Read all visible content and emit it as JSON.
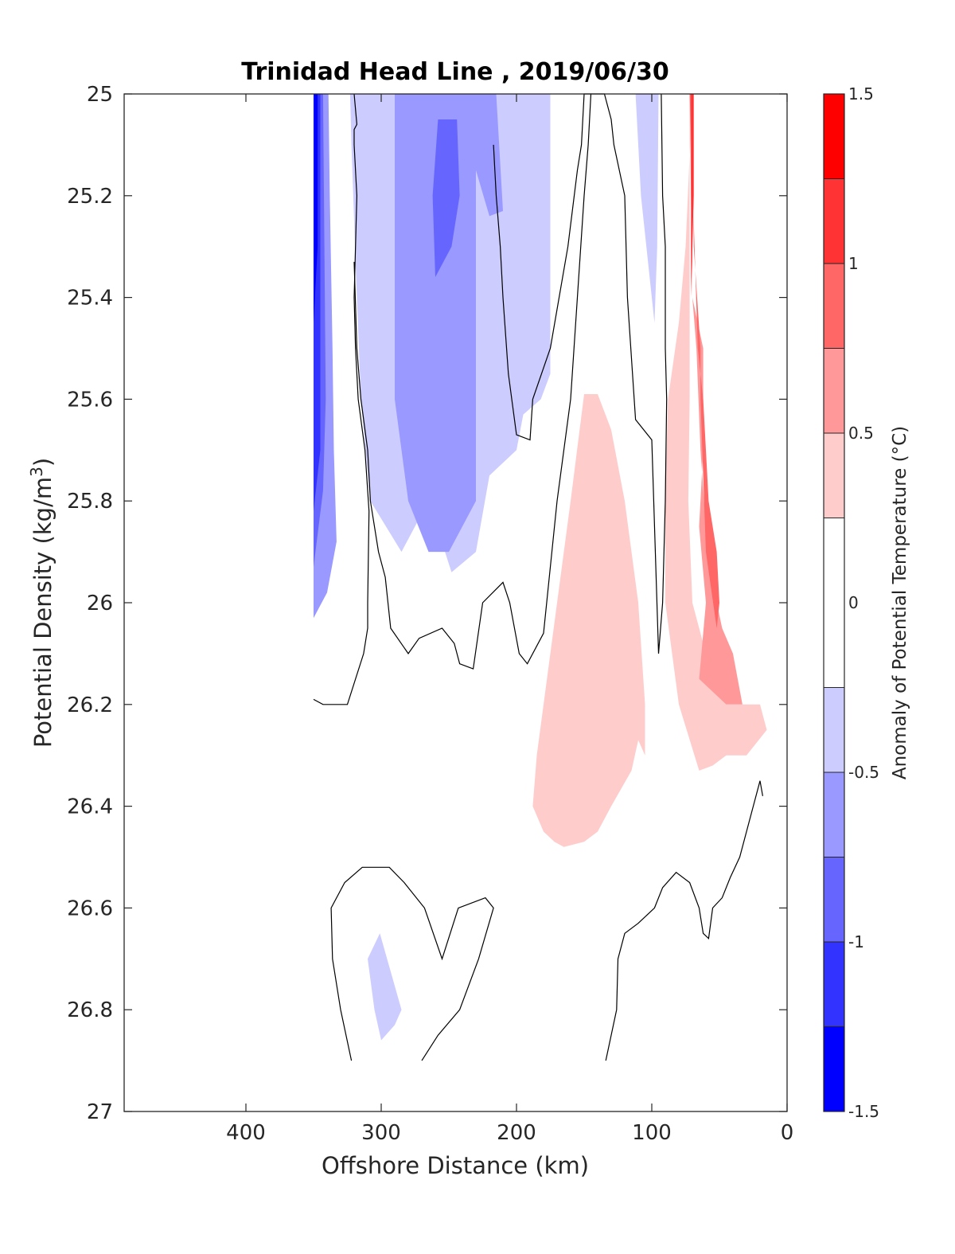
{
  "chart_data": {
    "type": "contour",
    "title": "Trinidad Head Line , 2019/06/30",
    "xlabel": "Offshore Distance (km)",
    "ylabel_main": "Potential Density (kg/m",
    "ylabel_sup": "3",
    "ylabel_end": ")",
    "xlim": [
      490,
      0
    ],
    "ylim": [
      25,
      27
    ],
    "x_reversed": true,
    "y_reversed": true,
    "x_ticks": [
      400,
      300,
      200,
      100,
      0
    ],
    "y_ticks": [
      25,
      25.2,
      25.4,
      25.6,
      25.8,
      26,
      26.2,
      26.4,
      26.6,
      26.8,
      27
    ],
    "y_tick_labels": [
      "25",
      "25.2",
      "25.4",
      "25.6",
      "25.8",
      "26",
      "26.2",
      "26.4",
      "26.6",
      "26.8",
      "27"
    ],
    "colorbar": {
      "label": "Anomaly of Potential Temperature (°C)",
      "range": [
        -1.5,
        1.5
      ],
      "ticks": [
        -1.5,
        -1,
        -0.5,
        0,
        0.5,
        1,
        1.5
      ],
      "tick_labels": [
        "-1.5",
        "-1",
        "-0.5",
        "0",
        "0.5",
        "1",
        "1.5"
      ],
      "levels": [
        {
          "from": -1.5,
          "to": -1.25,
          "color": "#0000ff"
        },
        {
          "from": -1.25,
          "to": -1.0,
          "color": "#3333ff"
        },
        {
          "from": -1.0,
          "to": -0.75,
          "color": "#6666ff"
        },
        {
          "from": -0.75,
          "to": -0.5,
          "color": "#9999ff"
        },
        {
          "from": -0.5,
          "to": -0.25,
          "color": "#ccccff"
        },
        {
          "from": -0.25,
          "to": 0.25,
          "color": "#ffffff"
        },
        {
          "from": 0.25,
          "to": 0.5,
          "color": "#ffcccc"
        },
        {
          "from": 0.5,
          "to": 0.75,
          "color": "#ff9999"
        },
        {
          "from": 0.75,
          "to": 1.0,
          "color": "#ff6666"
        },
        {
          "from": 1.0,
          "to": 1.25,
          "color": "#ff3333"
        },
        {
          "from": 1.25,
          "to": 1.5,
          "color": "#ff0000"
        }
      ]
    },
    "filled_regions": [
      {
        "name": "cold-core-offshore",
        "color": "#ccccff",
        "points": [
          [
            352,
            25
          ],
          [
            323,
            25
          ],
          [
            322,
            25.1
          ],
          [
            318,
            25.4
          ],
          [
            315,
            25.6
          ],
          [
            308,
            25.8
          ],
          [
            285,
            25.9
          ],
          [
            265,
            25.8
          ],
          [
            248,
            25.94
          ],
          [
            230,
            25.9
          ],
          [
            220,
            25.75
          ],
          [
            200,
            25.7
          ],
          [
            195,
            25.63
          ],
          [
            182,
            25.6
          ],
          [
            175,
            25.55
          ],
          [
            175,
            25
          ],
          [
            352,
            25
          ]
        ]
      },
      {
        "name": "cold-band-1",
        "color": "#9999ff",
        "points": [
          [
            350,
            25
          ],
          [
            339,
            25
          ],
          [
            338,
            25.2
          ],
          [
            336,
            25.5
          ],
          [
            335,
            25.7
          ],
          [
            333,
            25.88
          ],
          [
            340,
            25.98
          ],
          [
            350,
            26.03
          ]
        ]
      },
      {
        "name": "cold-band-2",
        "color": "#6666ff",
        "points": [
          [
            350,
            25
          ],
          [
            343,
            25
          ],
          [
            342,
            25.3
          ],
          [
            341,
            25.6
          ],
          [
            343,
            25.78
          ],
          [
            350,
            25.93
          ]
        ]
      },
      {
        "name": "cold-band-3",
        "color": "#3333ff",
        "points": [
          [
            350,
            25
          ],
          [
            345,
            25
          ],
          [
            345,
            25.4
          ],
          [
            345,
            25.7
          ],
          [
            350,
            25.82
          ]
        ]
      },
      {
        "name": "cold-band-4",
        "color": "#0000ff",
        "points": [
          [
            350,
            25
          ],
          [
            347,
            25
          ],
          [
            347,
            25.3
          ],
          [
            350,
            25.45
          ]
        ]
      },
      {
        "name": "cold-mid-1",
        "color": "#9999ff",
        "points": [
          [
            290,
            25
          ],
          [
            220,
            25
          ],
          [
            215,
            25.0
          ],
          [
            210,
            25.23
          ],
          [
            220,
            25.24
          ],
          [
            230,
            25.15
          ],
          [
            230,
            25.8
          ],
          [
            250,
            25.9
          ],
          [
            265,
            25.9
          ],
          [
            280,
            25.8
          ],
          [
            285,
            25.7
          ],
          [
            290,
            25.6
          ],
          [
            290,
            25.3
          ]
        ]
      },
      {
        "name": "cold-mid-2",
        "color": "#6666ff",
        "points": [
          [
            258,
            25.05
          ],
          [
            244,
            25.05
          ],
          [
            242,
            25.2
          ],
          [
            248,
            25.3
          ],
          [
            260,
            25.36
          ],
          [
            262,
            25.2
          ]
        ]
      },
      {
        "name": "cold-nearshore-1",
        "color": "#ccccff",
        "points": [
          [
            112,
            25
          ],
          [
            95,
            25
          ],
          [
            96,
            25.3
          ],
          [
            98,
            25.45
          ],
          [
            100,
            25.4
          ],
          [
            108,
            25.2
          ]
        ]
      },
      {
        "name": "cold-deep-1",
        "color": "#ccccff",
        "points": [
          [
            301,
            26.65
          ],
          [
            310,
            26.7
          ],
          [
            305,
            26.8
          ],
          [
            300,
            26.86
          ],
          [
            290,
            26.83
          ],
          [
            285,
            26.8
          ]
        ]
      },
      {
        "name": "warm-mid-1",
        "color": "#ffcccc",
        "points": [
          [
            150,
            25.59
          ],
          [
            140,
            25.59
          ],
          [
            130,
            25.66
          ],
          [
            120,
            25.8
          ],
          [
            110,
            26.0
          ],
          [
            105,
            26.2
          ],
          [
            105,
            26.3
          ],
          [
            110,
            26.27
          ],
          [
            115,
            26.33
          ],
          [
            130,
            26.4
          ],
          [
            140,
            26.45
          ],
          [
            150,
            26.47
          ],
          [
            165,
            26.48
          ],
          [
            172,
            26.47
          ],
          [
            180,
            26.45
          ],
          [
            188,
            26.4
          ],
          [
            185,
            26.3
          ],
          [
            180,
            26.2
          ],
          [
            170,
            26.0
          ],
          [
            160,
            25.8
          ]
        ]
      },
      {
        "name": "warm-nearshore-1",
        "color": "#ffcccc",
        "points": [
          [
            72,
            25
          ],
          [
            72,
            25.4
          ],
          [
            72,
            25.6
          ],
          [
            73,
            25.8
          ],
          [
            70,
            26.0
          ],
          [
            60,
            26.1
          ],
          [
            45,
            26.2
          ],
          [
            30,
            26.2
          ],
          [
            20,
            26.2
          ],
          [
            15,
            26.25
          ],
          [
            30,
            26.3
          ],
          [
            45,
            26.3
          ],
          [
            55,
            26.32
          ],
          [
            65,
            26.33
          ],
          [
            80,
            26.2
          ],
          [
            90,
            26.0
          ],
          [
            90,
            25.8
          ],
          [
            88,
            25.6
          ],
          [
            80,
            25.45
          ],
          [
            75,
            25.3
          ],
          [
            70,
            25
          ],
          [
            72,
            25
          ]
        ]
      },
      {
        "name": "warm-nearshore-2",
        "color": "#ff9999",
        "points": [
          [
            72,
            25
          ],
          [
            70,
            25
          ],
          [
            70,
            25.4
          ],
          [
            62,
            25.5
          ],
          [
            62,
            25.7
          ],
          [
            65,
            25.85
          ],
          [
            60,
            26.0
          ],
          [
            65,
            26.15
          ],
          [
            45,
            26.2
          ],
          [
            33,
            26.2
          ],
          [
            40,
            26.1
          ],
          [
            48,
            26.05
          ],
          [
            52,
            26.0
          ],
          [
            55,
            25.95
          ],
          [
            60,
            25.85
          ],
          [
            64,
            25.7
          ],
          [
            67,
            25.5
          ],
          [
            70,
            25.4
          ]
        ]
      },
      {
        "name": "warm-nearshore-3",
        "color": "#ff6666",
        "points": [
          [
            72,
            25
          ],
          [
            70,
            25
          ],
          [
            69,
            25.3
          ],
          [
            64,
            25.5
          ],
          [
            64,
            25.6
          ],
          [
            60,
            25.9
          ],
          [
            52,
            26.05
          ],
          [
            50,
            26.0
          ],
          [
            52,
            25.9
          ],
          [
            58,
            25.8
          ],
          [
            62,
            25.6
          ],
          [
            66,
            25.5
          ]
        ]
      },
      {
        "name": "warm-nearshore-4",
        "color": "#ff3333",
        "points": [
          [
            71,
            25
          ],
          [
            69,
            25
          ],
          [
            69,
            25.2
          ],
          [
            71,
            25.4
          ]
        ]
      }
    ],
    "contour_lines": [
      {
        "name": "zero-contour-offshore",
        "points": [
          [
            320,
            25
          ],
          [
            318,
            25.06
          ],
          [
            320,
            25.07
          ],
          [
            320,
            25.1
          ],
          [
            318,
            25.2
          ],
          [
            320,
            25.4
          ],
          [
            319,
            25.5
          ],
          [
            317,
            25.6
          ],
          [
            312,
            25.7
          ],
          [
            309,
            25.82
          ],
          [
            310,
            26.0
          ],
          [
            310,
            26.05
          ],
          [
            313,
            26.1
          ],
          [
            325,
            26.2
          ],
          [
            343,
            26.2
          ],
          [
            350,
            26.19
          ]
        ]
      },
      {
        "name": "zero-contour-mid",
        "points": [
          [
            320,
            25.33
          ],
          [
            318,
            25.5
          ],
          [
            315,
            25.6
          ],
          [
            310,
            25.7
          ],
          [
            308,
            25.8
          ],
          [
            302,
            25.9
          ],
          [
            297,
            25.95
          ],
          [
            293,
            26.05
          ],
          [
            280,
            26.1
          ],
          [
            272,
            26.07
          ],
          [
            255,
            26.05
          ],
          [
            246,
            26.08
          ],
          [
            242,
            26.12
          ],
          [
            232,
            26.13
          ],
          [
            225,
            26.0
          ],
          [
            210,
            25.96
          ],
          [
            205,
            26.0
          ],
          [
            198,
            26.1
          ],
          [
            192,
            26.12
          ],
          [
            180,
            26.06
          ],
          [
            170,
            25.8
          ],
          [
            160,
            25.6
          ],
          [
            155,
            25.4
          ],
          [
            150,
            25.2
          ],
          [
            147,
            25.1
          ],
          [
            145,
            25
          ],
          [
            150,
            25
          ],
          [
            152,
            25.1
          ],
          [
            155,
            25.15
          ],
          [
            162,
            25.3
          ],
          [
            175,
            25.5
          ],
          [
            188,
            25.6
          ],
          [
            190,
            25.68
          ],
          [
            200,
            25.67
          ],
          [
            206,
            25.55
          ],
          [
            210,
            25.4
          ],
          [
            212,
            25.3
          ],
          [
            215,
            25.2
          ],
          [
            217,
            25.1
          ]
        ]
      },
      {
        "name": "zero-contour-nearshore",
        "points": [
          [
            93,
            25
          ],
          [
            92,
            25.2
          ],
          [
            90,
            25.3
          ],
          [
            90,
            25.5
          ],
          [
            89,
            25.6
          ],
          [
            90,
            25.8
          ],
          [
            92,
            26.0
          ],
          [
            95,
            26.1
          ],
          [
            100,
            25.68
          ],
          [
            112,
            25.64
          ],
          [
            118,
            25.4
          ],
          [
            120,
            25.2
          ],
          [
            128,
            25.1
          ],
          [
            130,
            25.05
          ],
          [
            135,
            25
          ],
          [
            145,
            25
          ]
        ]
      },
      {
        "name": "zero-contour-deep-left",
        "points": [
          [
            322,
            26.9
          ],
          [
            330,
            26.8
          ],
          [
            336,
            26.7
          ],
          [
            337,
            26.6
          ],
          [
            327,
            26.55
          ],
          [
            314,
            26.52
          ],
          [
            294,
            26.52
          ],
          [
            283,
            26.55
          ],
          [
            268,
            26.6
          ],
          [
            255,
            26.7
          ],
          [
            243,
            26.6
          ],
          [
            223,
            26.58
          ],
          [
            217,
            26.6
          ],
          [
            228,
            26.7
          ],
          [
            242,
            26.8
          ],
          [
            258,
            26.85
          ],
          [
            270,
            26.9
          ]
        ]
      },
      {
        "name": "zero-contour-deep-right",
        "points": [
          [
            134,
            26.9
          ],
          [
            126,
            26.8
          ],
          [
            125,
            26.7
          ],
          [
            120,
            26.65
          ],
          [
            110,
            26.63
          ],
          [
            98,
            26.6
          ],
          [
            92,
            26.56
          ],
          [
            82,
            26.53
          ],
          [
            72,
            26.55
          ],
          [
            65,
            26.6
          ],
          [
            62,
            26.65
          ],
          [
            58,
            26.66
          ],
          [
            55,
            26.6
          ],
          [
            48,
            26.58
          ],
          [
            42,
            26.54
          ],
          [
            35,
            26.5
          ],
          [
            25,
            26.4
          ],
          [
            20,
            26.35
          ],
          [
            18,
            26.38
          ]
        ]
      }
    ]
  }
}
